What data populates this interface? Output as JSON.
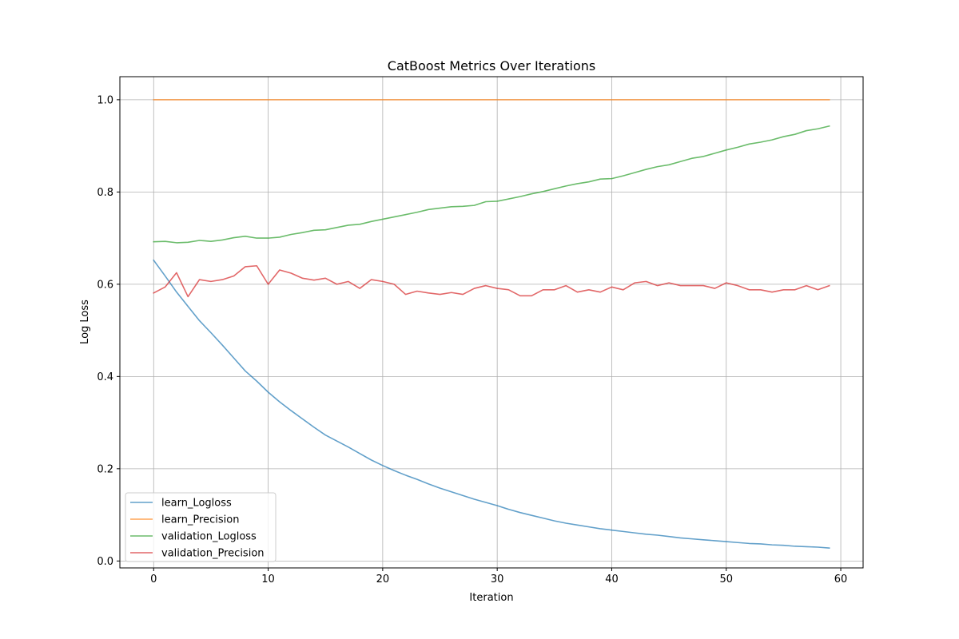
{
  "chart_data": {
    "type": "line",
    "title": "CatBoost Metrics Over Iterations",
    "xlabel": "Iteration",
    "ylabel": "Log Loss",
    "xlim": [
      -2.95,
      61.95
    ],
    "ylim": [
      -0.015,
      1.05
    ],
    "xticks": [
      0,
      10,
      20,
      30,
      40,
      50,
      60
    ],
    "yticks": [
      0.0,
      0.2,
      0.4,
      0.6,
      0.8,
      1.0
    ],
    "xtick_labels": [
      "0",
      "10",
      "20",
      "30",
      "40",
      "50",
      "60"
    ],
    "ytick_labels": [
      "0.0",
      "0.2",
      "0.4",
      "0.6",
      "0.8",
      "1.0"
    ],
    "grid": true,
    "legend_position": "lower-left",
    "x": [
      0,
      1,
      2,
      3,
      4,
      5,
      6,
      7,
      8,
      9,
      10,
      11,
      12,
      13,
      14,
      15,
      16,
      17,
      18,
      19,
      20,
      21,
      22,
      23,
      24,
      25,
      26,
      27,
      28,
      29,
      30,
      31,
      32,
      33,
      34,
      35,
      36,
      37,
      38,
      39,
      40,
      41,
      42,
      43,
      44,
      45,
      46,
      47,
      48,
      49,
      50,
      51,
      52,
      53,
      54,
      55,
      56,
      57,
      58,
      59
    ],
    "series": [
      {
        "name": "learn_Logloss",
        "color": "#1f77b4",
        "values": [
          0.652,
          0.618,
          0.583,
          0.552,
          0.521,
          0.495,
          0.468,
          0.44,
          0.412,
          0.39,
          0.366,
          0.345,
          0.326,
          0.308,
          0.29,
          0.273,
          0.26,
          0.247,
          0.233,
          0.219,
          0.207,
          0.196,
          0.186,
          0.177,
          0.167,
          0.158,
          0.15,
          0.142,
          0.134,
          0.127,
          0.12,
          0.112,
          0.105,
          0.099,
          0.093,
          0.087,
          0.082,
          0.078,
          0.074,
          0.07,
          0.067,
          0.064,
          0.061,
          0.058,
          0.056,
          0.053,
          0.05,
          0.048,
          0.046,
          0.044,
          0.042,
          0.04,
          0.038,
          0.037,
          0.035,
          0.034,
          0.032,
          0.031,
          0.03,
          0.028
        ]
      },
      {
        "name": "learn_Precision",
        "color": "#ff7f0e",
        "values": [
          1.0,
          1.0,
          1.0,
          1.0,
          1.0,
          1.0,
          1.0,
          1.0,
          1.0,
          1.0,
          1.0,
          1.0,
          1.0,
          1.0,
          1.0,
          1.0,
          1.0,
          1.0,
          1.0,
          1.0,
          1.0,
          1.0,
          1.0,
          1.0,
          1.0,
          1.0,
          1.0,
          1.0,
          1.0,
          1.0,
          1.0,
          1.0,
          1.0,
          1.0,
          1.0,
          1.0,
          1.0,
          1.0,
          1.0,
          1.0,
          1.0,
          1.0,
          1.0,
          1.0,
          1.0,
          1.0,
          1.0,
          1.0,
          1.0,
          1.0,
          1.0,
          1.0,
          1.0,
          1.0,
          1.0,
          1.0,
          1.0,
          1.0,
          1.0,
          1.0
        ]
      },
      {
        "name": "validation_Logloss",
        "color": "#2ca02c",
        "values": [
          0.692,
          0.693,
          0.69,
          0.691,
          0.695,
          0.693,
          0.696,
          0.701,
          0.704,
          0.7,
          0.7,
          0.702,
          0.708,
          0.712,
          0.717,
          0.718,
          0.723,
          0.728,
          0.73,
          0.736,
          0.741,
          0.746,
          0.751,
          0.756,
          0.762,
          0.765,
          0.768,
          0.769,
          0.771,
          0.779,
          0.78,
          0.785,
          0.79,
          0.796,
          0.801,
          0.807,
          0.813,
          0.818,
          0.822,
          0.828,
          0.829,
          0.835,
          0.842,
          0.849,
          0.855,
          0.859,
          0.866,
          0.873,
          0.877,
          0.884,
          0.891,
          0.897,
          0.904,
          0.908,
          0.913,
          0.92,
          0.925,
          0.933,
          0.937,
          0.943
        ]
      },
      {
        "name": "validation_Precision",
        "color": "#d62728",
        "values": [
          0.581,
          0.594,
          0.625,
          0.573,
          0.61,
          0.606,
          0.61,
          0.618,
          0.638,
          0.64,
          0.6,
          0.631,
          0.624,
          0.613,
          0.609,
          0.613,
          0.6,
          0.606,
          0.591,
          0.61,
          0.606,
          0.6,
          0.578,
          0.585,
          0.581,
          0.578,
          0.582,
          0.578,
          0.591,
          0.597,
          0.591,
          0.588,
          0.575,
          0.575,
          0.588,
          0.588,
          0.597,
          0.583,
          0.588,
          0.583,
          0.594,
          0.588,
          0.603,
          0.606,
          0.597,
          0.603,
          0.597,
          0.597,
          0.597,
          0.591,
          0.603,
          0.597,
          0.588,
          0.588,
          0.583,
          0.588,
          0.588,
          0.597,
          0.588,
          0.597
        ]
      }
    ]
  }
}
